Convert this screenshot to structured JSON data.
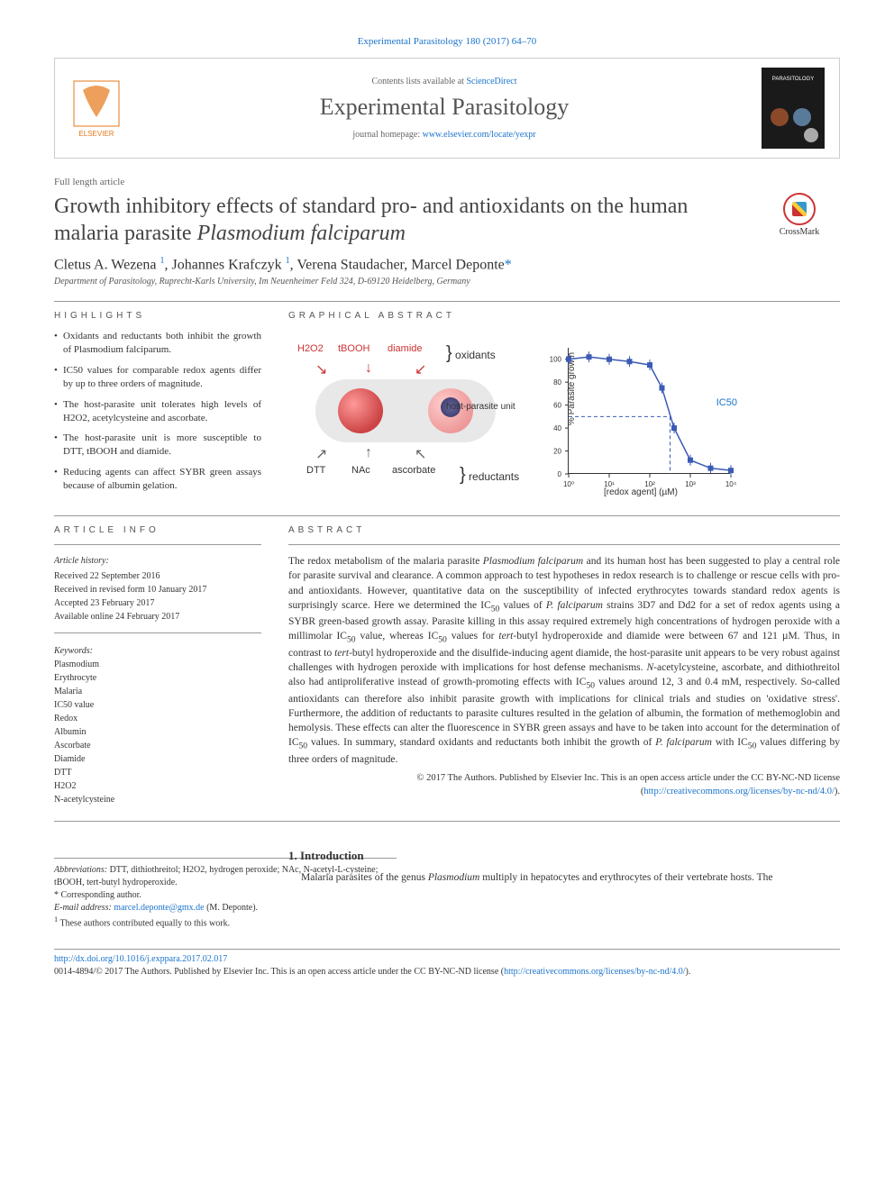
{
  "citation": "Experimental Parasitology 180 (2017) 64–70",
  "header": {
    "contents_prefix": "Contents lists available at ",
    "contents_link": "ScienceDirect",
    "journal": "Experimental Parasitology",
    "homepage_prefix": "journal homepage: ",
    "homepage_link": "www.elsevier.com/locate/yexpr"
  },
  "article_type": "Full length article",
  "title_html": "Growth inhibitory effects of standard pro- and antioxidants on the human malaria parasite <em>Plasmodium falciparum</em>",
  "crossmark": "CrossMark",
  "authors_html": "Cletus A. Wezena <sup>1</sup>, Johannes Krafczyk <sup>1</sup>, Verena Staudacher, Marcel Deponte<span class='corr'>*</span>",
  "affiliation": "Department of Parasitology, Ruprecht-Karls University, Im Neuenheimer Feld 324, D-69120 Heidelberg, Germany",
  "highlights_label": "HIGHLIGHTS",
  "highlights": [
    "Oxidants and reductants both inhibit the growth of Plasmodium falciparum.",
    "IC50 values for comparable redox agents differ by up to three orders of magnitude.",
    "The host-parasite unit tolerates high levels of H2O2, acetylcysteine and ascorbate.",
    "The host-parasite unit is more susceptible to DTT, tBOOH and diamide.",
    "Reducing agents can affect SYBR green assays because of albumin gelation."
  ],
  "graphical_label": "GRAPHICAL ABSTRACT",
  "ga": {
    "oxidants": [
      "H2O2",
      "tBOOH",
      "diamide"
    ],
    "oxidants_brace": "} oxidants",
    "host_label": "host-parasite unit",
    "reductants": [
      "DTT",
      "NAc",
      "ascorbate"
    ],
    "reductants_brace": "} reductants",
    "chart": {
      "ylabel": "% Parasite growth",
      "xlabel": "[redox agent] (µM)",
      "ic50_label": "IC50",
      "ylim": [
        0,
        110
      ],
      "ytick_step": 20,
      "xticks_log": [
        "10⁰",
        "10¹",
        "10²",
        "10³",
        "10⁴"
      ],
      "series_color": "#3b5bb5",
      "marker": "square",
      "marker_size": 6,
      "line_color": "#3b5bb5",
      "ic50_line_color": "#3b5bb5",
      "ic50_line_dash": "4 3",
      "points_x_log": [
        0,
        0.5,
        1.0,
        1.5,
        2.0,
        2.3,
        2.6,
        3.0,
        3.5,
        4.0
      ],
      "points_y": [
        100,
        102,
        100,
        98,
        95,
        75,
        40,
        12,
        5,
        3
      ],
      "error_bar": 6,
      "background_color": "#ffffff",
      "axis_color": "#333333"
    },
    "colors": {
      "oxidant_label": "#c8352e",
      "reductant_label": "#333333",
      "cell_box_bg": "#e8e8e8"
    }
  },
  "article_info_label": "ARTICLE INFO",
  "article_info": {
    "history_label": "Article history:",
    "received": "Received 22 September 2016",
    "revised": "Received in revised form 10 January 2017",
    "accepted": "Accepted 23 February 2017",
    "online": "Available online 24 February 2017"
  },
  "keywords_label": "Keywords:",
  "keywords": [
    "Plasmodium",
    "Erythrocyte",
    "Malaria",
    "IC50 value",
    "Redox",
    "Albumin",
    "Ascorbate",
    "Diamide",
    "DTT",
    "H2O2",
    "N-acetylcysteine"
  ],
  "abstract_label": "ABSTRACT",
  "abstract_html": "The redox metabolism of the malaria parasite <em>Plasmodium falciparum</em> and its human host has been suggested to play a central role for parasite survival and clearance. A common approach to test hypotheses in redox research is to challenge or rescue cells with pro- and antioxidants. However, quantitative data on the susceptibility of infected erythrocytes towards standard redox agents is surprisingly scarce. Here we determined the IC<sub>50</sub> values of <em>P. falciparum</em> strains 3D7 and Dd2 for a set of redox agents using a SYBR green-based growth assay. Parasite killing in this assay required extremely high concentrations of hydrogen peroxide with a millimolar IC<sub>50</sub> value, whereas IC<sub>50</sub> values for <em>tert</em>-butyl hydroperoxide and diamide were between 67 and 121 µM. Thus, in contrast to <em>tert</em>-butyl hydroperoxide and the disulfide-inducing agent diamide, the host-parasite unit appears to be very robust against challenges with hydrogen peroxide with implications for host defense mechanisms. <em>N</em>-acetylcysteine, ascorbate, and dithiothreitol also had antiproliferative instead of growth-promoting effects with IC<sub>50</sub> values around 12, 3 and 0.4 mM, respectively. So-called antioxidants can therefore also inhibit parasite growth with implications for clinical trials and studies on 'oxidative stress'. Furthermore, the addition of reductants to parasite cultures resulted in the gelation of albumin, the formation of methemoglobin and hemolysis. These effects can alter the fluorescence in SYBR green assays and have to be taken into account for the determination of IC<sub>50</sub> values. In summary, standard oxidants and reductants both inhibit the growth of <em>P. falciparum</em> with IC<sub>50</sub> values differing by three orders of magnitude.",
  "copyright_html": "© 2017 The Authors. Published by Elsevier Inc. This is an open access article under the CC BY-NC-ND license (<a href='#'>http://creativecommons.org/licenses/by-nc-nd/4.0/</a>).",
  "footnotes": {
    "abbrev_label": "Abbreviations:",
    "abbrev": "DTT, dithiothreitol; H2O2, hydrogen peroxide; NAc, N-acetyl-L-cysteine; tBOOH, tert-butyl hydroperoxide.",
    "corr": "* Corresponding author.",
    "email_label": "E-mail address:",
    "email": "marcel.deponte@gmx.de",
    "email_who": "(M. Deponte).",
    "note1": "1 These authors contributed equally to this work."
  },
  "intro": {
    "heading": "1. Introduction",
    "text_html": "Malaria parasites of the genus <em>Plasmodium</em> multiply in hepatocytes and erythrocytes of their vertebrate hosts. The"
  },
  "doi_footer": {
    "doi": "http://dx.doi.org/10.1016/j.exppara.2017.02.017",
    "issn_line": "0014-4894/© 2017 The Authors. Published by Elsevier Inc. This is an open access article under the CC BY-NC-ND license (",
    "license_link": "http://creativecommons.org/licenses/by-nc-nd/4.0/",
    "close": ")."
  }
}
